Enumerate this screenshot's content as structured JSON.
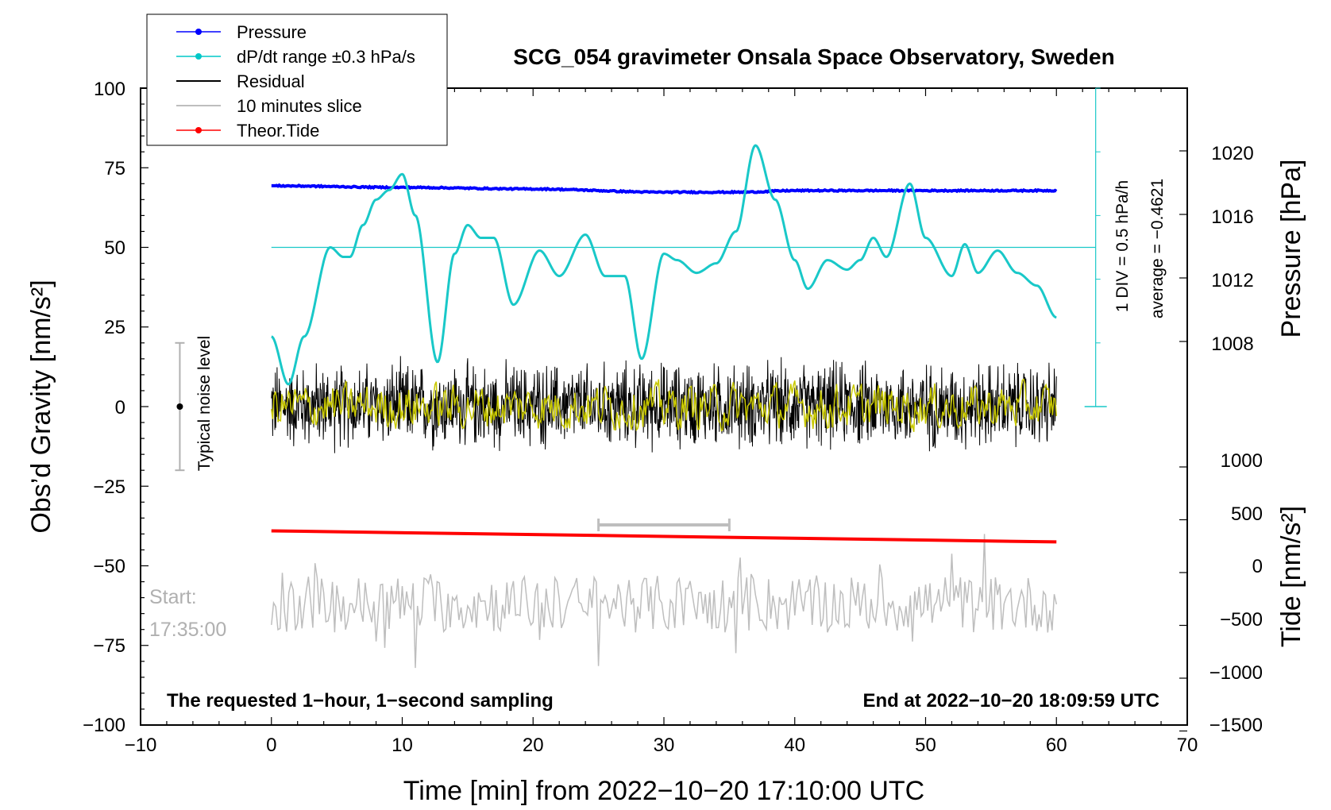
{
  "chart_data": {
    "type": "line",
    "title": "SCG_054 gravimeter Onsala Space Observatory, Sweden",
    "xlabel": "Time [min] from 2022−10−20 17:10:00 UTC",
    "ylabel_left": "Obs’d Gravity [nm/s²]",
    "ylabel_pressure": "Pressure [hPa]",
    "ylabel_tide": "Tide [nm/s²]",
    "xlim": [
      -10,
      70
    ],
    "ylim_left": [
      -100,
      100
    ],
    "x_ticks": [
      "−10",
      "0",
      "10",
      "20",
      "30",
      "40",
      "50",
      "60",
      "70"
    ],
    "y_ticks_left": [
      "100",
      "75",
      "50",
      "25",
      "0",
      "−25",
      "−50",
      "−75",
      "−100"
    ],
    "pressure_ticks": [
      "1020",
      "1016",
      "1012",
      "1008"
    ],
    "tide_ticks": [
      "1000",
      "500",
      "0",
      "−500",
      "−1000",
      "−1500"
    ],
    "legend": [
      {
        "label": "Pressure",
        "color": "#0000ff",
        "marker": true
      },
      {
        "label": "dP/dt range ±0.3 hPa/s",
        "color": "#00c8c8",
        "marker": true
      },
      {
        "label": "Residual",
        "color": "#000000",
        "marker": false
      },
      {
        "label": "10 minutes slice",
        "color": "#bebebe",
        "marker": false
      },
      {
        "label": "Theor.Tide",
        "color": "#ff0000",
        "marker": true
      }
    ],
    "colors": {
      "pressure": "#0000ff",
      "dpdt": "#19c8c8",
      "residual": "#000000",
      "smoothed": "#c8c800",
      "slice": "#bebebe",
      "tide": "#ff0000"
    },
    "series": [
      {
        "name": "Pressure",
        "axis": "pressure_hPa",
        "x": [
          0,
          10,
          20,
          30,
          36,
          40,
          50,
          60
        ],
        "values": [
          1017.8,
          1017.7,
          1017.6,
          1017.4,
          1017.4,
          1017.5,
          1017.5,
          1017.5
        ]
      },
      {
        "name": "dP/dt",
        "axis": "left_nm_s2",
        "x": [
          0,
          1.3,
          2.5,
          4.5,
          5.5,
          6,
          7,
          8,
          9,
          10,
          11,
          12.7,
          14,
          15,
          16,
          17,
          18.5,
          20.5,
          22,
          24,
          25.5,
          27,
          28.3,
          30,
          31,
          32.5,
          34,
          35.5,
          37,
          38.5,
          40,
          41,
          42.5,
          44,
          45,
          46,
          47,
          48.8,
          50,
          52,
          53,
          54,
          55.5,
          57,
          58.5,
          60
        ],
        "values": [
          22,
          7,
          22,
          50,
          47,
          47,
          57,
          65,
          68,
          73,
          60,
          14,
          48,
          57,
          53,
          53,
          32,
          49,
          41,
          54,
          41,
          41,
          15,
          48,
          46,
          42,
          45,
          55,
          82,
          65,
          46,
          37,
          46,
          43,
          46,
          53,
          47,
          70,
          53,
          41,
          51,
          42,
          49,
          42,
          38,
          28
        ]
      },
      {
        "name": "Theor.Tide",
        "axis": "tide_nm_s2",
        "x": [
          0,
          60
        ],
        "values": [
          395,
          290
        ]
      }
    ],
    "dpdt_reference_level": 50,
    "dpdt_scale_label": "1 DIV = 0.5 hPa/h",
    "dpdt_average_label": "average = −0.4621",
    "residual_band": [
      -15,
      18
    ],
    "slice_bar_minutes": [
      25,
      35
    ],
    "noise_level": {
      "label": "Typical noise level",
      "center": 0,
      "range": [
        -20,
        20
      ],
      "x_minutes": -7
    },
    "start_label": "Start:",
    "start_time": "17:35:00",
    "note_left": "The requested 1−hour, 1−second sampling",
    "note_right": "End at 2022−10−20 18:09:59 UTC"
  }
}
